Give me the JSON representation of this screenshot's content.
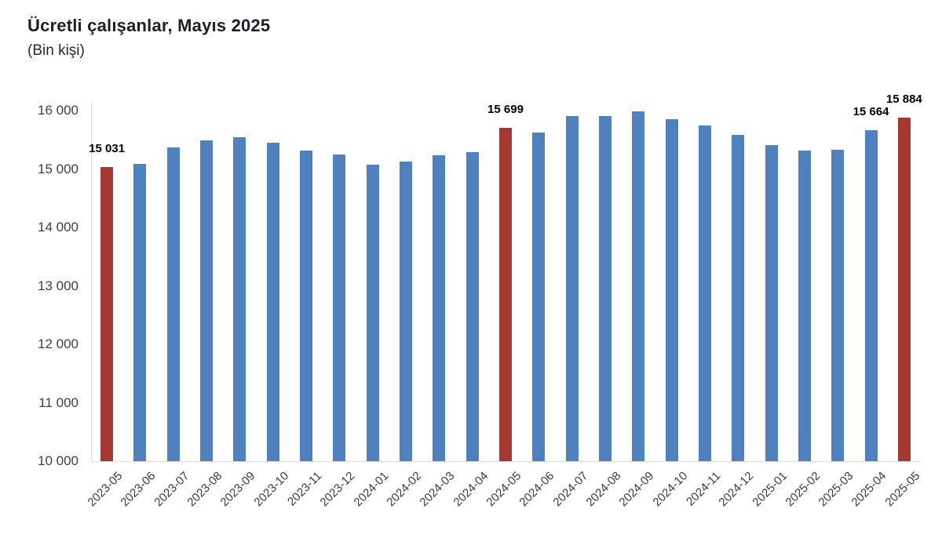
{
  "title": "Ücretli çalışanlar, Mayıs 2025",
  "subtitle": "(Bin kişi)",
  "chart_data": {
    "type": "bar",
    "title": "Ücretli çalışanlar, Mayıs 2025",
    "subtitle": "(Bin kişi)",
    "unit": "Bin kişi",
    "categories": [
      "2023-05",
      "2023-06",
      "2023-07",
      "2023-08",
      "2023-09",
      "2023-10",
      "2023-11",
      "2023-12",
      "2024-01",
      "2024-02",
      "2024-03",
      "2024-04",
      "2024-05",
      "2024-06",
      "2024-07",
      "2024-08",
      "2024-09",
      "2024-10",
      "2024-11",
      "2024-12",
      "2025-01",
      "2025-02",
      "2025-03",
      "2025-04",
      "2025-05"
    ],
    "values": [
      15031,
      15085,
      15375,
      15485,
      15550,
      15455,
      15315,
      15250,
      15075,
      15125,
      15230,
      15295,
      15699,
      15620,
      15910,
      15900,
      15985,
      15855,
      15745,
      15590,
      15415,
      15310,
      15335,
      15664,
      15884
    ],
    "highlight_indices": [
      0,
      12,
      24
    ],
    "data_labels": [
      {
        "index": 0,
        "text": "15 031"
      },
      {
        "index": 12,
        "text": "15 699"
      },
      {
        "index": 23,
        "text": "15 664"
      },
      {
        "index": 24,
        "text": "15 884"
      }
    ],
    "ylim": [
      10000,
      16000
    ],
    "ytick_step": 1000,
    "ytick_labels": [
      "16 000",
      "15 000",
      "14 000",
      "13 000",
      "12 000",
      "11 000",
      "10 000"
    ],
    "x_labels_rotation": 45,
    "grid": false,
    "legend": false,
    "colors": {
      "bar": "#4E81BD",
      "highlight": "#A53932",
      "axis": "#D9D9D9",
      "tick_text": "#3F3F3F",
      "data_label_text": "#000000"
    }
  }
}
